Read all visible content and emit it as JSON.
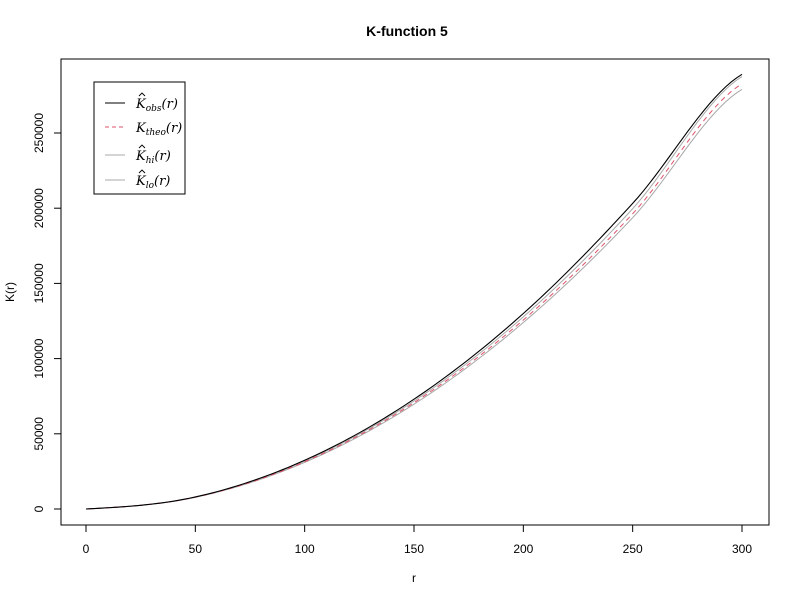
{
  "chart_data": {
    "type": "line",
    "title": "K-function 5",
    "xlabel": "r",
    "ylabel": "K(r)",
    "xlim": [
      0,
      300
    ],
    "ylim": [
      0,
      285000
    ],
    "x_ticks": [
      0,
      50,
      100,
      150,
      200,
      250,
      300
    ],
    "x_tick_labels": [
      "0",
      "50",
      "100",
      "150",
      "200",
      "250",
      "300"
    ],
    "y_ticks": [
      0,
      50000,
      100000,
      150000,
      200000,
      250000
    ],
    "y_tick_labels": [
      "0",
      "50000",
      "100000",
      "150000",
      "200000",
      "250000"
    ],
    "grid": false,
    "legend_position": "top-left",
    "x": [
      0,
      50,
      100,
      150,
      200,
      250,
      300
    ],
    "series": [
      {
        "key": "obs",
        "legend": {
          "base": "K",
          "hat": true,
          "sub": "obs",
          "arg": "(r)"
        },
        "color": "#000000",
        "dash": "solid",
        "values": [
          0,
          8000,
          32400,
          73000,
          130000,
          203200,
          289000
        ]
      },
      {
        "key": "theo",
        "legend": {
          "base": "K",
          "hat": false,
          "sub": "theo",
          "arg": "(r)"
        },
        "color": "#DF536B",
        "dash": "dashed",
        "values": [
          0,
          7850,
          31400,
          70700,
          125700,
          196300,
          282700
        ]
      },
      {
        "key": "hi",
        "legend": {
          "base": "K",
          "hat": true,
          "sub": "hi",
          "arg": "(r)"
        },
        "color": "#A8A8A8",
        "dash": "solid",
        "values": [
          0,
          7950,
          31900,
          71800,
          127800,
          199700,
          287500
        ]
      },
      {
        "key": "lo",
        "legend": {
          "base": "K",
          "hat": true,
          "sub": "lo",
          "arg": "(r)"
        },
        "color": "#A8A8A8",
        "dash": "solid",
        "values": [
          0,
          7750,
          31000,
          69700,
          124000,
          193700,
          279000
        ]
      }
    ]
  }
}
